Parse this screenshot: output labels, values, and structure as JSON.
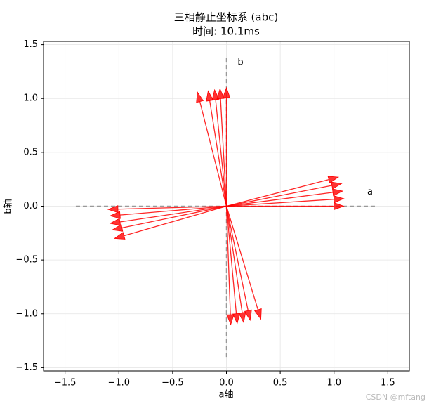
{
  "chart_data": {
    "type": "quiver",
    "title": "三相静止坐标系 (abc)",
    "subtitle": "时间: 10.1ms",
    "x_label": "a轴",
    "y_label": "b轴",
    "watermark": "CSDN @mftang",
    "color": "#ff0000",
    "u": [
      1.09,
      1.09,
      1.08,
      1.07,
      1.04,
      0.0,
      -0.06,
      -0.11,
      -0.17,
      -0.27,
      -1.1,
      -1.08,
      -1.08,
      -1.06,
      -1.04,
      0.04,
      0.1,
      0.16,
      0.22,
      0.32
    ],
    "v": [
      0.0,
      0.07,
      0.14,
      0.21,
      0.27,
      1.1,
      1.09,
      1.08,
      1.07,
      1.06,
      -0.03,
      -0.09,
      -0.16,
      -0.22,
      -0.3,
      -1.1,
      -1.09,
      -1.08,
      -1.06,
      -1.05
    ],
    "reference_lines": [
      {
        "label": "a",
        "x": [
          -1.4,
          1.4
        ],
        "y": [
          0,
          0
        ]
      },
      {
        "label": "b",
        "x": [
          0,
          0
        ],
        "y": [
          -1.4,
          1.4
        ]
      }
    ],
    "xlim": [
      -1.7,
      1.7
    ],
    "ylim": [
      -1.53,
      1.53
    ],
    "xticks": [
      {
        "value": -1.5,
        "label": "−1.5"
      },
      {
        "value": -1.0,
        "label": "−1.0"
      },
      {
        "value": -0.5,
        "label": "−0.5"
      },
      {
        "value": 0.0,
        "label": "0.0"
      },
      {
        "value": 0.5,
        "label": "0.5"
      },
      {
        "value": 1.0,
        "label": "1.0"
      },
      {
        "value": 1.5,
        "label": "1.5"
      }
    ],
    "yticks": [
      {
        "value": -1.5,
        "label": "−1.5"
      },
      {
        "value": -1.0,
        "label": "−1.0"
      },
      {
        "value": -0.5,
        "label": "−0.5"
      },
      {
        "value": 0.0,
        "label": "0.0"
      },
      {
        "value": 0.5,
        "label": "0.5"
      },
      {
        "value": 1.0,
        "label": "1.0"
      },
      {
        "value": 1.5,
        "label": "1.5"
      }
    ],
    "grid": true
  }
}
